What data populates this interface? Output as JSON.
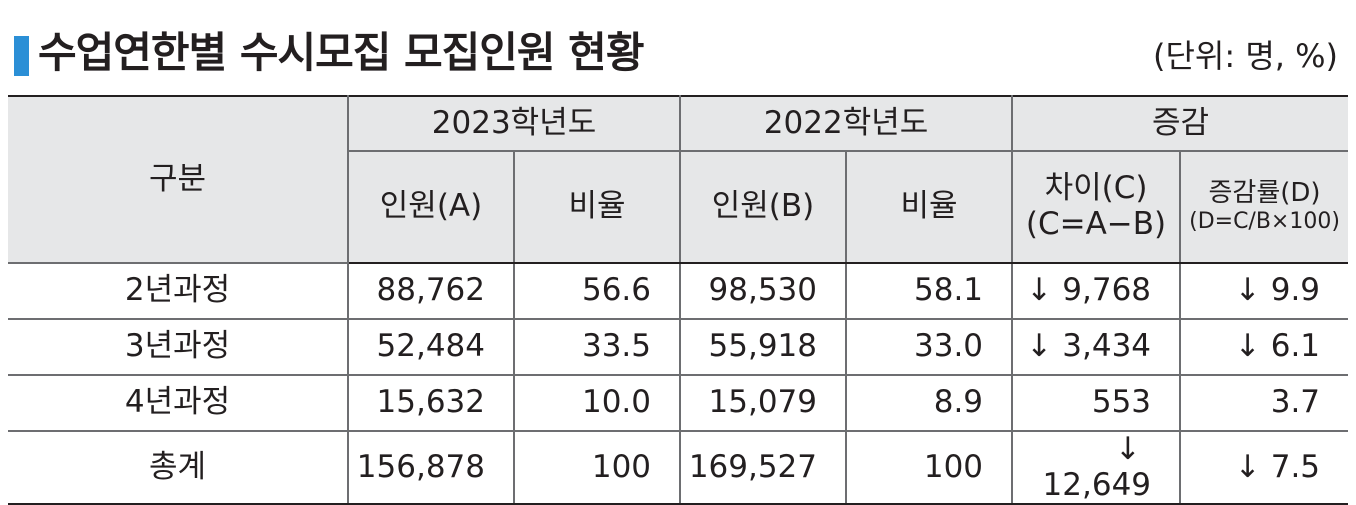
{
  "title": "수업연한별 수시모집 모집인원 현황",
  "unit": "(단위: 명, %)",
  "headers": {
    "category": "구분",
    "y2023": "2023학년도",
    "y2022": "2022학년도",
    "change": "증감",
    "count_a": "인원(A)",
    "ratio_a": "비율",
    "count_b": "인원(B)",
    "ratio_b": "비율",
    "diff_line1": "차이(C)",
    "diff_line2": "(C=A−B)",
    "rate_line1": "증감률(D)",
    "rate_line2": "(D=C/B×100)"
  },
  "down_arrow": "↓",
  "rows": [
    {
      "label": "2년과정",
      "a": "88,762",
      "ra": "56.6",
      "b": "98,530",
      "rb": "58.1",
      "c": "9,768",
      "c_down": true,
      "d": "9.9",
      "d_down": true
    },
    {
      "label": "3년과정",
      "a": "52,484",
      "ra": "33.5",
      "b": "55,918",
      "rb": "33.0",
      "c": "3,434",
      "c_down": true,
      "d": "6.1",
      "d_down": true
    },
    {
      "label": "4년과정",
      "a": "15,632",
      "ra": "10.0",
      "b": "15,079",
      "rb": "8.9",
      "c": "553",
      "c_down": false,
      "d": "3.7",
      "d_down": false
    },
    {
      "label": "총계",
      "a": "156,878",
      "ra": "100",
      "b": "169,527",
      "rb": "100",
      "c": "12,649",
      "c_down": true,
      "d": "7.5",
      "d_down": true
    }
  ]
}
